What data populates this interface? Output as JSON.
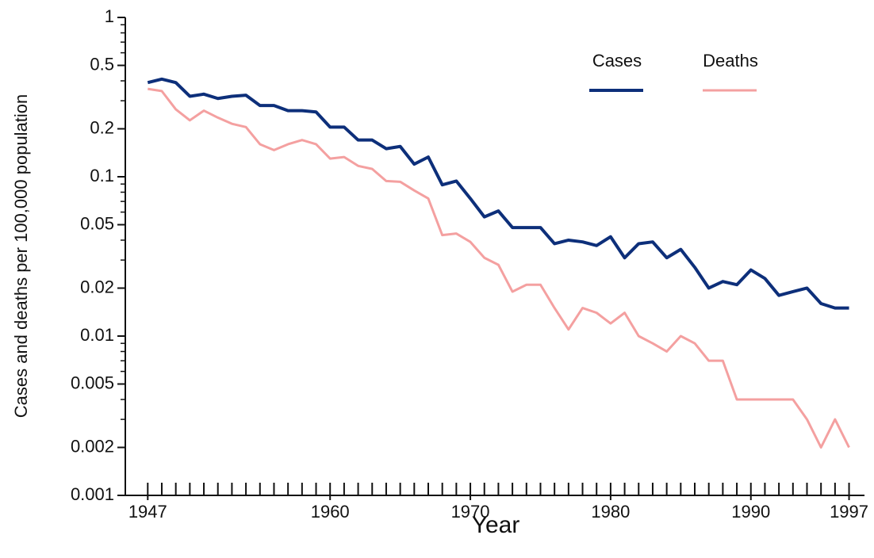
{
  "chart_data": {
    "type": "line",
    "x": [
      1947,
      1948,
      1949,
      1950,
      1951,
      1952,
      1953,
      1954,
      1955,
      1956,
      1957,
      1958,
      1959,
      1960,
      1961,
      1962,
      1963,
      1964,
      1965,
      1966,
      1967,
      1968,
      1969,
      1970,
      1971,
      1972,
      1973,
      1974,
      1975,
      1976,
      1977,
      1978,
      1979,
      1980,
      1981,
      1982,
      1983,
      1984,
      1985,
      1986,
      1987,
      1988,
      1989,
      1990,
      1991,
      1992,
      1993,
      1994,
      1995,
      1996,
      1997
    ],
    "series": [
      {
        "name": "Cases",
        "color": "#0d2f7a",
        "values": [
          0.39,
          0.41,
          0.39,
          0.32,
          0.33,
          0.31,
          0.32,
          0.325,
          0.28,
          0.28,
          0.26,
          0.26,
          0.255,
          0.205,
          0.205,
          0.17,
          0.17,
          0.15,
          0.155,
          0.12,
          0.133,
          0.089,
          0.094,
          0.073,
          0.056,
          0.061,
          0.048,
          0.048,
          0.048,
          0.038,
          0.04,
          0.039,
          0.037,
          0.042,
          0.031,
          0.038,
          0.039,
          0.031,
          0.035,
          0.027,
          0.02,
          0.022,
          0.021,
          0.026,
          0.023,
          0.018,
          0.019,
          0.02,
          0.016,
          0.015,
          0.015
        ]
      },
      {
        "name": "Deaths",
        "color": "#f4a0a0",
        "values": [
          0.356,
          0.345,
          0.265,
          0.226,
          0.26,
          0.235,
          0.215,
          0.205,
          0.16,
          0.147,
          0.16,
          0.17,
          0.16,
          0.13,
          0.133,
          0.117,
          0.112,
          0.094,
          0.093,
          0.082,
          0.073,
          0.043,
          0.044,
          0.039,
          0.031,
          0.028,
          0.019,
          0.021,
          0.021,
          0.015,
          0.011,
          0.015,
          0.014,
          0.012,
          0.014,
          0.01,
          0.009,
          0.008,
          0.01,
          0.009,
          0.007,
          0.007,
          0.004,
          0.004,
          0.004,
          0.004,
          0.004,
          0.003,
          0.002,
          0.003,
          0.002
        ]
      }
    ],
    "x_label": "Year",
    "y_label": "Cases and deaths per 100,000 population",
    "xlim": [
      1945.4,
      1998.1
    ],
    "xticks": [
      1947,
      1960,
      1970,
      1980,
      1990,
      1997
    ],
    "ylim": [
      0.001,
      1
    ],
    "yticks": [
      0.001,
      0.002,
      0.005,
      0.01,
      0.02,
      0.05,
      0.1,
      0.2,
      0.5,
      1
    ],
    "yminorticks": [
      0.003,
      0.004,
      0.006,
      0.007,
      0.008,
      0.009,
      0.03,
      0.04,
      0.06,
      0.07,
      0.08,
      0.09,
      0.3,
      0.4,
      0.6,
      0.7,
      0.8,
      0.9
    ],
    "log_y": true,
    "legend": "upper right"
  }
}
